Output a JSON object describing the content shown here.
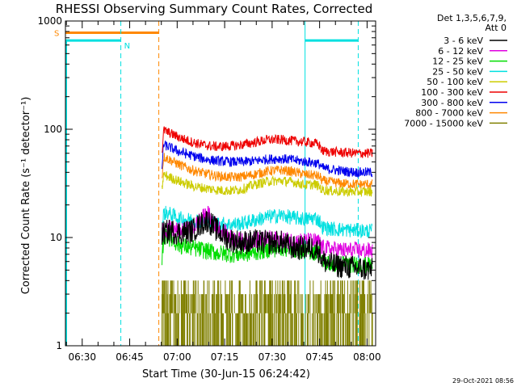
{
  "chart_data": {
    "type": "line",
    "title": "RHESSI Observing Summary Count Rates, Corrected",
    "xlabel": "Start Time (30-Jun-15 06:24:42)",
    "ylabel": "Corrected Count Rate (s⁻¹ detector⁻¹)",
    "yscale": "log",
    "ylim": [
      1,
      1000
    ],
    "xlim_minutes": [
      0,
      98
    ],
    "x_ticks": [
      {
        "m": 5.3,
        "label": "06:30"
      },
      {
        "m": 20.3,
        "label": "06:45"
      },
      {
        "m": 35.3,
        "label": "07:00"
      },
      {
        "m": 50.3,
        "label": "07:15"
      },
      {
        "m": 65.3,
        "label": "07:30"
      },
      {
        "m": 80.3,
        "label": "07:45"
      },
      {
        "m": 95.3,
        "label": "08:00"
      }
    ],
    "y_ticks": [
      {
        "v": 1,
        "label": "1"
      },
      {
        "v": 10,
        "label": "10"
      },
      {
        "v": 100,
        "label": "100"
      },
      {
        "v": 1000,
        "label": "1000"
      }
    ],
    "legend": {
      "position": "top-right",
      "header": [
        "Det 1,3,5,6,7,9,",
        "Att 0"
      ]
    },
    "series": [
      {
        "name": "3 - 6 keV",
        "color": "#000000",
        "noise": 0.05,
        "x": [
          30.5,
          33,
          36,
          40,
          43,
          45,
          48,
          52,
          56,
          60,
          64,
          68,
          72,
          75,
          78,
          80.5,
          81,
          84,
          88,
          92,
          97
        ],
        "y": [
          10.8,
          11.5,
          11,
          11.5,
          13.5,
          14.5,
          11.5,
          9.5,
          9,
          9.2,
          9,
          9,
          8,
          8,
          8,
          7.5,
          6.2,
          5.6,
          5.4,
          5.2,
          5
        ]
      },
      {
        "name": "6 - 12 keV",
        "color": "#e000e0",
        "noise": 0.035,
        "x": [
          30.5,
          33,
          36,
          40,
          43,
          45,
          48,
          52,
          56,
          60,
          64,
          68,
          72,
          75,
          78,
          80.5,
          81,
          84,
          88,
          92,
          97
        ],
        "y": [
          11.5,
          12,
          11.5,
          12,
          15,
          16.5,
          12.5,
          10,
          9.2,
          9.5,
          9.7,
          9.6,
          9.3,
          9.3,
          9.2,
          9,
          8,
          7.8,
          7.6,
          7.6,
          7.5
        ]
      },
      {
        "name": "12 - 25 keV",
        "color": "#00dd00",
        "noise": 0.035,
        "x": [
          30.5,
          31,
          32,
          36,
          40,
          44,
          48,
          52,
          56,
          60,
          64,
          68,
          72,
          76,
          80.5,
          81,
          84,
          88,
          92,
          97
        ],
        "y": [
          6,
          9.8,
          10.3,
          8.5,
          8,
          7.6,
          7.2,
          7,
          7,
          7.3,
          7.7,
          8,
          7.8,
          7.5,
          7.2,
          5.9,
          5.7,
          5.7,
          5.6,
          5.5
        ]
      },
      {
        "name": "25 - 50 keV",
        "color": "#00e0e0",
        "noise": 0.03,
        "x": [
          30.5,
          31,
          32,
          36,
          40,
          44,
          48,
          52,
          56,
          60,
          64,
          68,
          72,
          76,
          79,
          80.5,
          81,
          84,
          88,
          92,
          97
        ],
        "y": [
          11,
          16.5,
          17,
          15,
          14.5,
          14,
          13.5,
          13.2,
          13.5,
          14.5,
          15.5,
          16,
          15.2,
          14.8,
          15.2,
          14,
          12.5,
          12,
          11.8,
          11.6,
          11.5
        ]
      },
      {
        "name": "50 - 100 keV",
        "color": "#cccc00",
        "noise": 0.02,
        "x": [
          30.5,
          31,
          32,
          36,
          40,
          44,
          48,
          52,
          56,
          60,
          64,
          68,
          72,
          76,
          79,
          80.5,
          81,
          84,
          88,
          92,
          97
        ],
        "y": [
          28,
          38,
          37,
          33,
          30,
          28.5,
          27.5,
          27,
          28,
          31,
          33,
          33.5,
          32.5,
          30.5,
          31,
          29,
          27.5,
          27,
          26.5,
          26.5,
          26.5
        ]
      },
      {
        "name": "100 - 300 keV",
        "color": "#ee0000",
        "noise": 0.02,
        "x": [
          30.5,
          31,
          32,
          36,
          40,
          44,
          48,
          52,
          56,
          60,
          64,
          68,
          72,
          76,
          79,
          80.5,
          81,
          84,
          88,
          92,
          97
        ],
        "y": [
          60,
          98,
          95,
          84,
          76,
          71,
          69,
          70,
          72,
          76,
          80,
          80,
          78,
          76,
          74,
          70,
          63,
          62,
          61,
          60,
          60
        ]
      },
      {
        "name": "300 - 800 keV",
        "color": "#0000ee",
        "noise": 0.02,
        "x": [
          30.5,
          31,
          32,
          36,
          40,
          44,
          48,
          52,
          56,
          60,
          64,
          68,
          72,
          76,
          79,
          80.5,
          81,
          84,
          88,
          92,
          97
        ],
        "y": [
          45,
          72,
          70,
          62,
          57,
          53,
          51,
          50,
          50,
          51,
          53,
          53.5,
          52,
          50,
          49,
          47,
          44,
          42.5,
          41,
          40,
          40
        ]
      },
      {
        "name": "800 - 7000 keV",
        "color": "#ff8800",
        "noise": 0.02,
        "x": [
          30.5,
          31,
          32,
          36,
          40,
          44,
          48,
          52,
          56,
          60,
          64,
          68,
          72,
          76,
          79,
          80.5,
          81,
          84,
          88,
          92,
          97
        ],
        "y": [
          35,
          56,
          54,
          47,
          42,
          39,
          37,
          36,
          36.5,
          38.5,
          41,
          42,
          40.5,
          38,
          37.5,
          36,
          33.5,
          32.5,
          31.5,
          31,
          31
        ]
      },
      {
        "name": "7000 - 15000 keV",
        "color": "#808000",
        "noise": 0,
        "x": [
          30.5,
          97
        ],
        "y": [
          2,
          2
        ]
      }
    ],
    "attenuator_state": {
      "label": "S",
      "start_min": 0,
      "end_min": 29.5,
      "value": 780,
      "color": "#ff8800"
    },
    "saa_night_flags": [
      {
        "label": "N",
        "start_min": 0,
        "end_min": 17.5,
        "value": 660,
        "color": "#00e0e0"
      },
      {
        "label": "",
        "start_min": 75.7,
        "end_min": 92.5,
        "value": 660,
        "color": "#00e0e0"
      }
    ],
    "markers": [
      {
        "minute": 17.5,
        "color": "#00e0e0",
        "style": "dashed"
      },
      {
        "minute": 29.5,
        "color": "#ff8800",
        "style": "dashed"
      },
      {
        "minute": 75.7,
        "color": "#00e0e0",
        "style": "solid"
      },
      {
        "minute": 92.5,
        "color": "#00e0e0",
        "style": "dashed"
      }
    ]
  },
  "footer": {
    "timestamp": "29-Oct-2021 08:56"
  }
}
